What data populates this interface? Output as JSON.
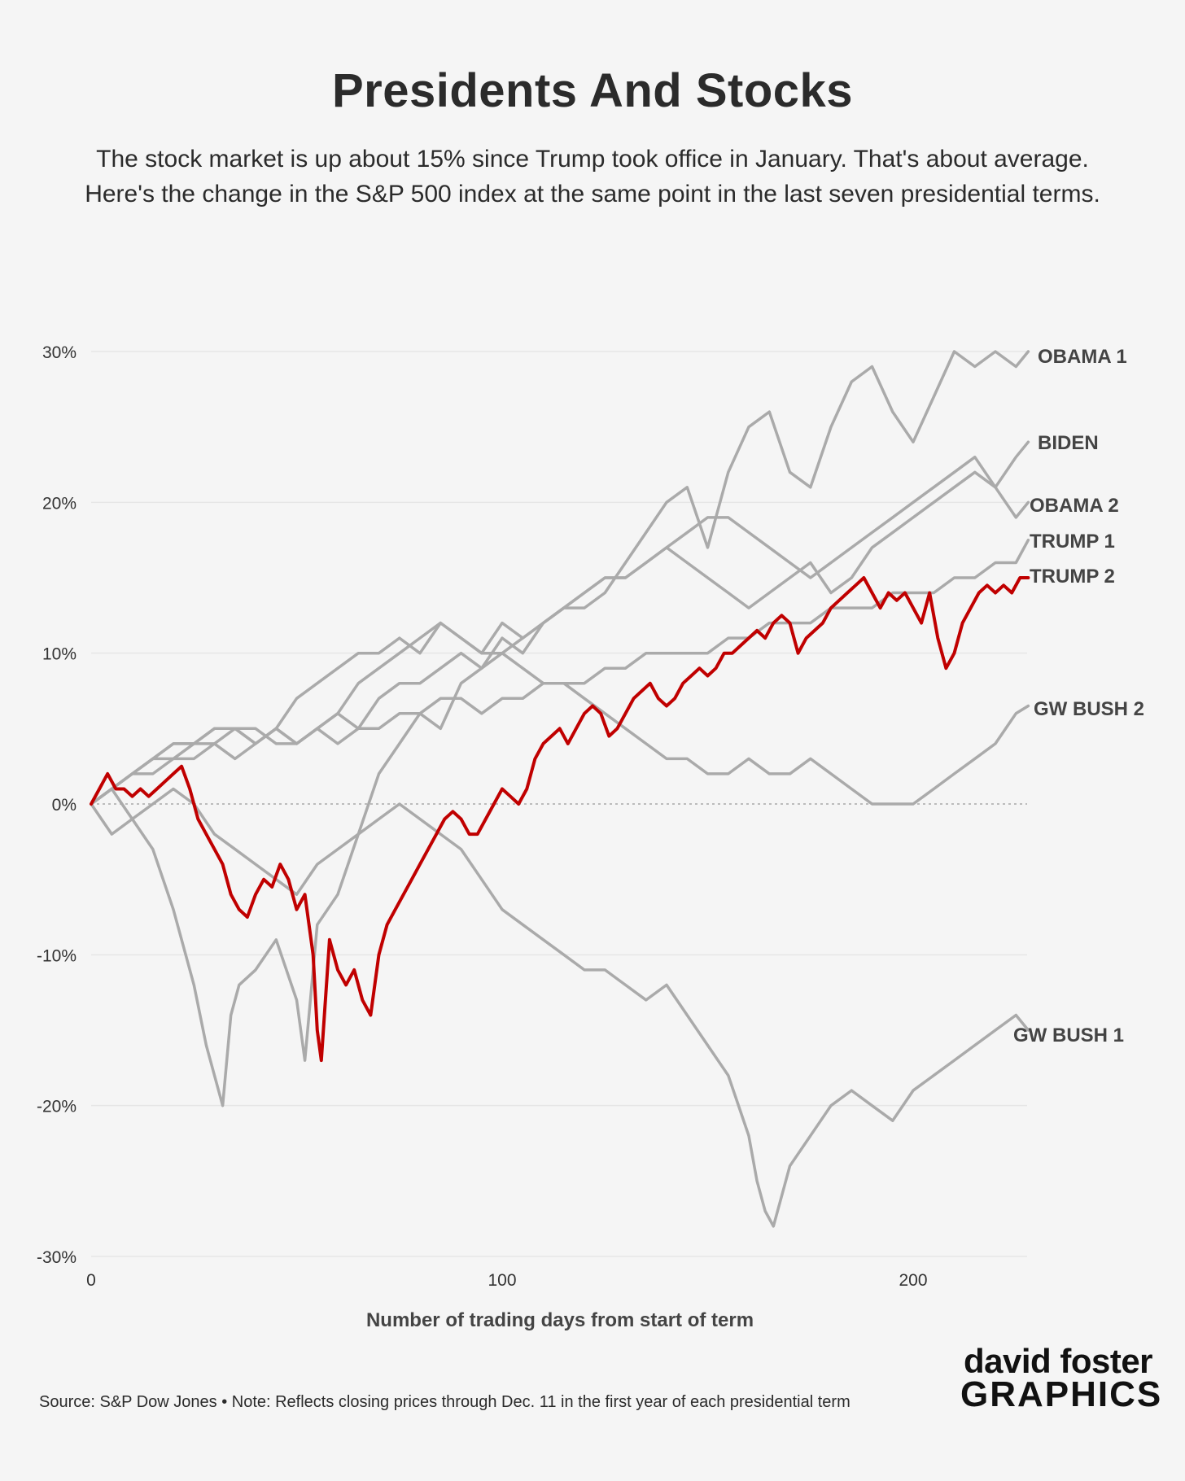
{
  "header": {
    "title": "Presidents And Stocks",
    "subtitle": "The stock market is up about 15% since Trump took office in January. That's about average. Here's the change in the S&P 500 index at the same point in the last seven presidential terms."
  },
  "footer": {
    "source_note": "Source: S&P Dow Jones • Note: Reflects closing prices through Dec. 11 in the first year of each presidential term",
    "logo_top": "david foster",
    "logo_bottom": "GRAPHICS"
  },
  "colors": {
    "highlight": "#c00000",
    "other": "#aaaaaa",
    "grid": "#e6e6e6",
    "zero_line": "#bbbbbb",
    "label": "#444444"
  },
  "chart_data": {
    "type": "line",
    "title": "Presidents And Stocks",
    "xlabel": "Number of trading days from start of term",
    "ylabel": "",
    "xlim": [
      0,
      228
    ],
    "ylim": [
      -30,
      30
    ],
    "x_ticks": [
      0,
      100,
      200
    ],
    "x_tick_labels": [
      "0",
      "100",
      "200"
    ],
    "y_ticks": [
      30,
      20,
      10,
      0,
      -10,
      -20,
      -30
    ],
    "y_tick_labels": [
      "30%",
      "20%",
      "10%",
      "0%",
      "-10%",
      "-20%",
      "-30%"
    ],
    "grid": "horizontal",
    "zero_line": "dotted",
    "series": [
      {
        "name": "OBAMA 1",
        "highlight": false,
        "x": [
          0,
          5,
          10,
          15,
          20,
          25,
          28,
          30,
          32,
          34,
          36,
          40,
          45,
          50,
          52,
          55,
          60,
          65,
          70,
          75,
          80,
          85,
          90,
          95,
          100,
          105,
          110,
          115,
          120,
          125,
          130,
          135,
          140,
          145,
          150,
          155,
          160,
          165,
          170,
          175,
          180,
          185,
          190,
          195,
          200,
          205,
          210,
          215,
          220,
          225,
          228
        ],
        "values": [
          0,
          1,
          -1,
          -3,
          -7,
          -12,
          -16,
          -18,
          -20,
          -14,
          -12,
          -11,
          -9,
          -13,
          -17,
          -8,
          -6,
          -2,
          2,
          4,
          6,
          5,
          8,
          9,
          11,
          10,
          12,
          13,
          13,
          14,
          16,
          18,
          20,
          21,
          17,
          22,
          25,
          26,
          22,
          21,
          25,
          28,
          29,
          26,
          24,
          27,
          30,
          29,
          30,
          29,
          30
        ]
      },
      {
        "name": "BIDEN",
        "highlight": false,
        "x": [
          0,
          5,
          10,
          15,
          20,
          25,
          30,
          35,
          40,
          45,
          50,
          55,
          60,
          65,
          70,
          75,
          80,
          85,
          90,
          95,
          100,
          105,
          110,
          115,
          120,
          125,
          130,
          135,
          140,
          145,
          150,
          155,
          160,
          165,
          170,
          175,
          180,
          185,
          190,
          195,
          200,
          205,
          210,
          215,
          220,
          225,
          228
        ],
        "values": [
          0,
          1,
          2,
          3,
          3,
          4,
          4,
          5,
          4,
          5,
          7,
          8,
          9,
          10,
          10,
          11,
          10,
          12,
          11,
          10,
          12,
          11,
          12,
          13,
          14,
          15,
          15,
          16,
          17,
          18,
          19,
          19,
          18,
          17,
          16,
          15,
          16,
          17,
          18,
          19,
          20,
          21,
          22,
          23,
          21,
          23,
          24
        ]
      },
      {
        "name": "OBAMA 2",
        "highlight": false,
        "x": [
          0,
          5,
          10,
          15,
          20,
          25,
          30,
          35,
          40,
          45,
          50,
          55,
          60,
          65,
          70,
          75,
          80,
          85,
          90,
          95,
          100,
          105,
          110,
          115,
          120,
          125,
          130,
          135,
          140,
          145,
          150,
          155,
          160,
          165,
          170,
          175,
          180,
          185,
          190,
          195,
          200,
          205,
          210,
          215,
          220,
          225,
          228
        ],
        "values": [
          0,
          1,
          2,
          3,
          4,
          4,
          5,
          5,
          4,
          5,
          4,
          5,
          6,
          5,
          7,
          8,
          8,
          9,
          10,
          9,
          10,
          11,
          12,
          13,
          14,
          15,
          15,
          16,
          17,
          16,
          15,
          14,
          13,
          14,
          15,
          16,
          14,
          15,
          17,
          18,
          19,
          20,
          21,
          22,
          21,
          19,
          20
        ]
      },
      {
        "name": "TRUMP 1",
        "highlight": false,
        "x": [
          0,
          5,
          10,
          15,
          20,
          25,
          30,
          35,
          40,
          45,
          50,
          55,
          60,
          65,
          70,
          75,
          80,
          85,
          90,
          95,
          100,
          105,
          110,
          115,
          120,
          125,
          130,
          135,
          140,
          145,
          150,
          155,
          160,
          165,
          170,
          175,
          180,
          185,
          190,
          195,
          200,
          205,
          210,
          215,
          220,
          225,
          228
        ],
        "values": [
          0,
          1,
          2,
          2,
          3,
          3,
          4,
          3,
          4,
          5,
          4,
          5,
          4,
          5,
          5,
          6,
          6,
          7,
          7,
          6,
          7,
          7,
          8,
          8,
          8,
          9,
          9,
          10,
          10,
          10,
          10,
          11,
          11,
          12,
          12,
          12,
          13,
          13,
          13,
          14,
          14,
          14,
          15,
          15,
          16,
          16,
          17.5
        ]
      },
      {
        "name": "TRUMP 2",
        "highlight": true,
        "x": [
          0,
          2,
          4,
          6,
          8,
          10,
          12,
          14,
          16,
          18,
          20,
          22,
          24,
          26,
          28,
          30,
          32,
          34,
          36,
          38,
          40,
          42,
          44,
          46,
          48,
          50,
          52,
          54,
          55,
          56,
          58,
          60,
          62,
          64,
          66,
          68,
          70,
          72,
          74,
          76,
          78,
          80,
          82,
          84,
          86,
          88,
          90,
          92,
          94,
          96,
          98,
          100,
          102,
          104,
          106,
          108,
          110,
          112,
          114,
          116,
          118,
          120,
          122,
          124,
          126,
          128,
          130,
          132,
          134,
          136,
          138,
          140,
          142,
          144,
          146,
          148,
          150,
          152,
          154,
          156,
          158,
          160,
          162,
          164,
          166,
          168,
          170,
          172,
          174,
          176,
          178,
          180,
          182,
          184,
          186,
          188,
          190,
          192,
          194,
          196,
          198,
          200,
          202,
          204,
          206,
          208,
          210,
          212,
          214,
          216,
          218,
          220,
          222,
          224,
          226,
          228
        ],
        "values": [
          0,
          1,
          2,
          1,
          1,
          0.5,
          1,
          0.5,
          1,
          1.5,
          2,
          2.5,
          1,
          -1,
          -2,
          -3,
          -4,
          -6,
          -7,
          -7.5,
          -6,
          -5,
          -5.5,
          -4,
          -5,
          -7,
          -6,
          -10,
          -15,
          -17,
          -9,
          -11,
          -12,
          -11,
          -13,
          -14,
          -10,
          -8,
          -7,
          -6,
          -5,
          -4,
          -3,
          -2,
          -1,
          -0.5,
          -1,
          -2,
          -2,
          -1,
          0,
          1,
          0.5,
          0,
          1,
          3,
          4,
          4.5,
          5,
          4,
          5,
          6,
          6.5,
          6,
          4.5,
          5,
          6,
          7,
          7.5,
          8,
          7,
          6.5,
          7,
          8,
          8.5,
          9,
          8.5,
          9,
          10,
          10,
          10.5,
          11,
          11.5,
          11,
          12,
          12.5,
          12,
          10,
          11,
          11.5,
          12,
          13,
          13.5,
          14,
          14.5,
          15,
          14,
          13,
          14,
          13.5,
          14,
          13,
          12,
          14,
          11,
          9,
          10,
          12,
          13,
          14,
          14.5,
          14,
          14.5,
          14,
          15,
          15
        ]
      },
      {
        "name": "GW BUSH 2",
        "highlight": false,
        "x": [
          0,
          5,
          10,
          15,
          20,
          25,
          30,
          35,
          40,
          45,
          50,
          55,
          60,
          65,
          70,
          75,
          80,
          85,
          90,
          95,
          100,
          105,
          110,
          115,
          120,
          125,
          130,
          135,
          140,
          145,
          150,
          155,
          160,
          165,
          170,
          175,
          180,
          185,
          190,
          195,
          200,
          205,
          210,
          215,
          220,
          225,
          228
        ],
        "values": [
          0,
          1,
          2,
          3,
          4,
          4,
          5,
          5,
          5,
          4,
          4,
          5,
          6,
          8,
          9,
          10,
          11,
          12,
          11,
          10,
          10,
          9,
          8,
          8,
          7,
          6,
          5,
          4,
          3,
          3,
          2,
          2,
          3,
          2,
          2,
          3,
          2,
          1,
          0,
          0,
          0,
          1,
          2,
          3,
          4,
          6,
          6.5
        ]
      },
      {
        "name": "GW BUSH 1",
        "highlight": false,
        "x": [
          0,
          5,
          10,
          15,
          20,
          25,
          30,
          35,
          40,
          45,
          50,
          55,
          60,
          65,
          70,
          75,
          80,
          85,
          90,
          95,
          100,
          105,
          110,
          115,
          120,
          125,
          130,
          135,
          140,
          145,
          150,
          155,
          160,
          162,
          164,
          166,
          168,
          170,
          175,
          180,
          185,
          190,
          195,
          200,
          205,
          210,
          215,
          220,
          225,
          228
        ],
        "values": [
          0,
          -2,
          -1,
          0,
          1,
          0,
          -2,
          -3,
          -4,
          -5,
          -6,
          -4,
          -3,
          -2,
          -1,
          0,
          -1,
          -2,
          -3,
          -5,
          -7,
          -8,
          -9,
          -10,
          -11,
          -11,
          -12,
          -13,
          -12,
          -14,
          -16,
          -18,
          -22,
          -25,
          -27,
          -28,
          -26,
          -24,
          -22,
          -20,
          -19,
          -20,
          -21,
          -19,
          -18,
          -17,
          -16,
          -15,
          -14,
          -15
        ]
      }
    ],
    "labels": [
      "OBAMA 1",
      "BIDEN",
      "OBAMA 2",
      "TRUMP 1",
      "TRUMP 2",
      "GW BUSH 2",
      "GW BUSH 1"
    ]
  }
}
